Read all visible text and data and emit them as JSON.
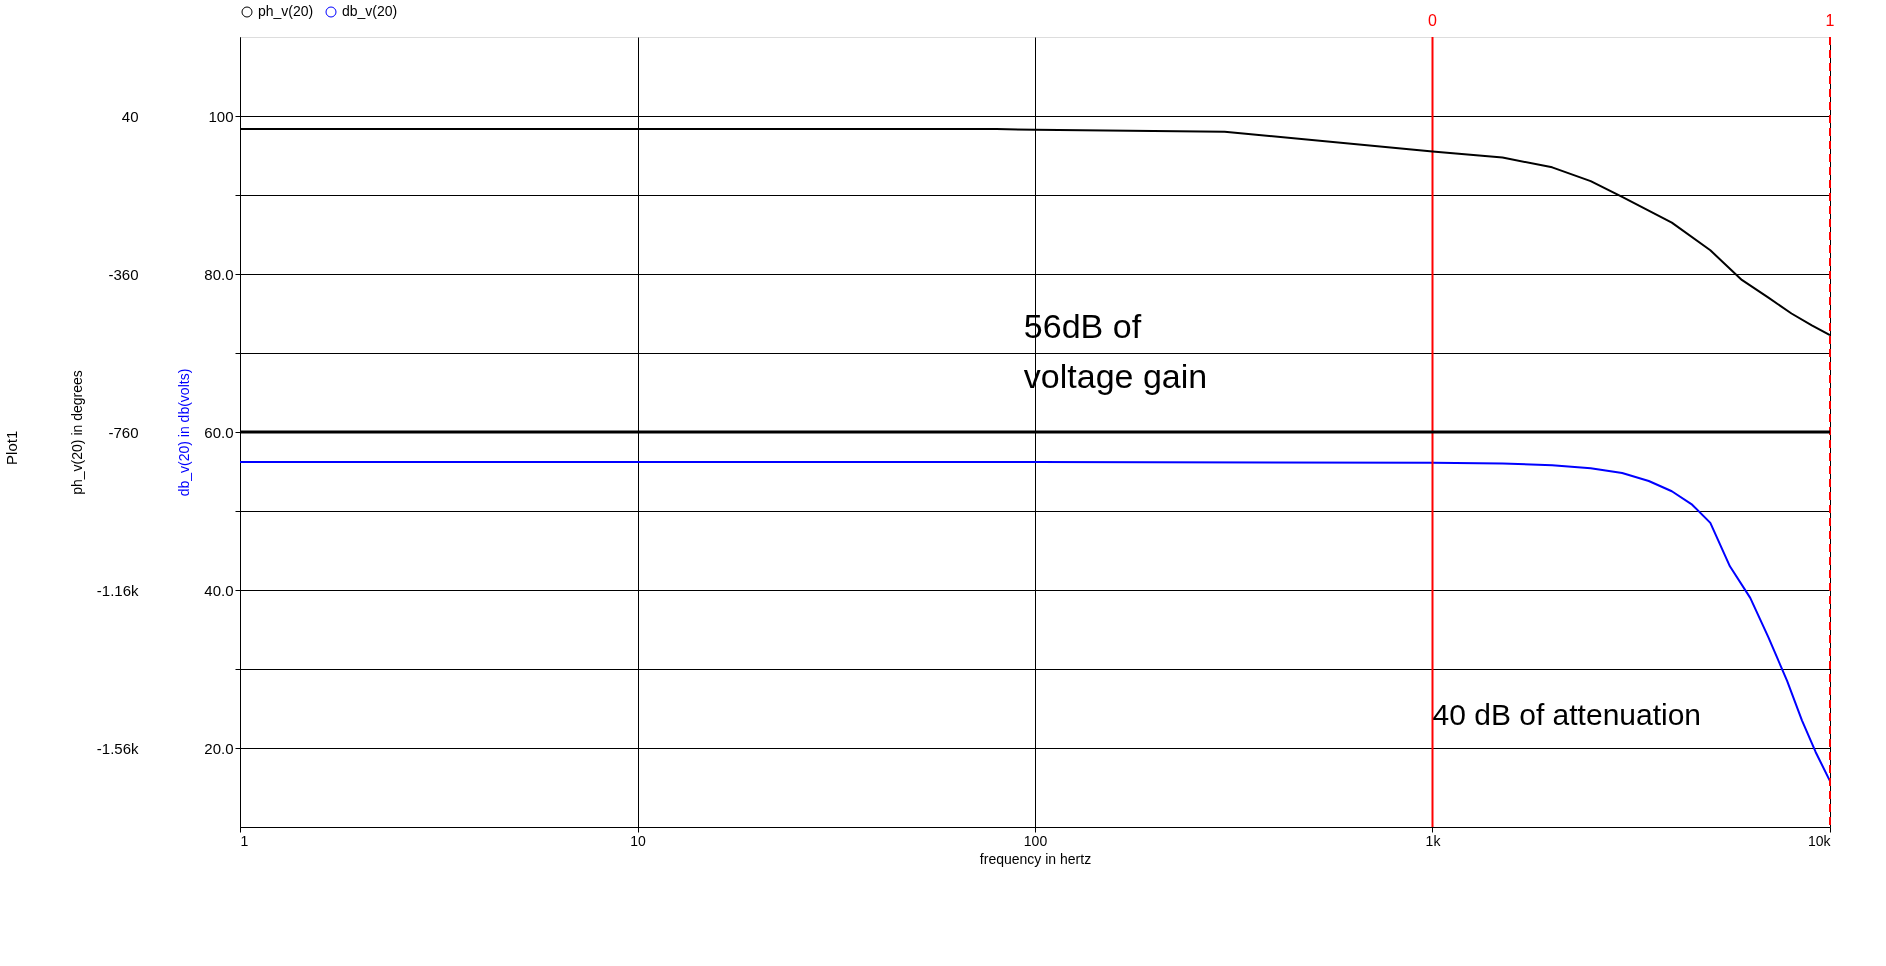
{
  "chart_data": {
    "type": "line",
    "xlabel": "frequency in hertz",
    "ylabel": "db_v(20) in db(volts)",
    "y2label": "ph_v(20) in degrees",
    "log": "x",
    "grid": true,
    "legend": "top left",
    "line_style": "solid",
    "marker": "none",
    "xlim": [
      1,
      10000
    ],
    "xticks": [
      1,
      10,
      100,
      {
        "value": 1000,
        "label": "1k"
      },
      {
        "value": 10000,
        "label": "10k"
      }
    ],
    "ylim": [
      10,
      110
    ],
    "yticks": [
      {
        "value": 20,
        "label": "20.0"
      },
      {
        "value": 30,
        "label": null
      },
      {
        "value": 40,
        "label": "40.0"
      },
      {
        "value": 50,
        "label": null
      },
      {
        "value": 60,
        "label": "60.0"
      },
      {
        "value": 70,
        "label": null
      },
      {
        "value": 80,
        "label": "80.0"
      },
      {
        "value": 90,
        "label": null
      },
      100
    ],
    "y2lim": [
      -1760,
      240
    ],
    "y2ticks": [
      40,
      -360,
      -760,
      {
        "value": -1160,
        "label": "-1.16k"
      },
      {
        "value": -1560,
        "label": "-1.56k"
      }
    ],
    "series": [
      {
        "name": "ph_v(20)",
        "color": "#000000",
        "axis": "y2",
        "x": [
          1,
          10,
          80,
          100,
          300,
          1000,
          1500,
          2000,
          2500,
          3000,
          4000,
          5000,
          6000,
          7000,
          8000,
          9000,
          10000
        ],
        "values": [
          7,
          7,
          7,
          5,
          0,
          -50,
          -65,
          -90,
          -125,
          -165,
          -230,
          -300,
          -375,
          -420,
          -460,
          -490,
          -515
        ]
      },
      {
        "name": "db_v(20)",
        "color": "#0000ff",
        "x": [
          1,
          10,
          100,
          1000,
          1500,
          2000,
          2500,
          3000,
          3500,
          4000,
          4500,
          5000,
          5600,
          6300,
          7000,
          7800,
          8500,
          9200,
          10000
        ],
        "values": [
          56.2,
          56.2,
          56.2,
          56.1,
          56.0,
          55.8,
          55.4,
          54.8,
          53.8,
          52.5,
          50.8,
          48.5,
          43,
          39,
          34,
          28.5,
          23.5,
          19.5,
          15.8
        ]
      }
    ],
    "ref_lines": [
      {
        "axis": "x",
        "value": 1000,
        "color": "#ff0000",
        "line_style": "solid"
      },
      {
        "axis": "x",
        "value": 10000,
        "color": "#ff0000",
        "line_style": "dashed"
      },
      {
        "axis": "y",
        "value": 60,
        "label": null,
        "color": "#000000",
        "line_style": "solid"
      }
    ],
    "annotations": [
      "Plot1",
      "56dB of\nvoltage gain",
      "0",
      "1",
      {
        "text": "40 dB of attenuation",
        "x": 1000,
        "y": 24
      }
    ]
  }
}
